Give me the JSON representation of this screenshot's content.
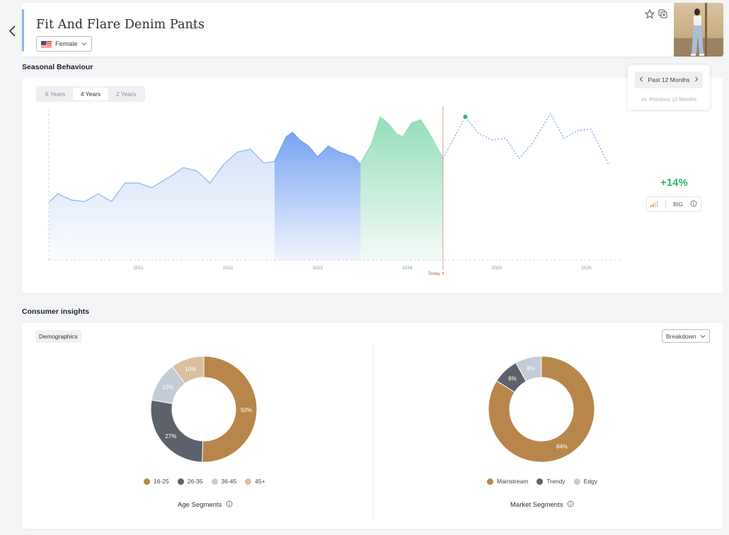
{
  "header": {
    "title": "Fit And Flare Denim Pants",
    "gender": "Female"
  },
  "seasonal": {
    "section_title": "Seasonal Behaviour",
    "year_tabs": [
      "6 Years",
      "4 Years",
      "2 Years"
    ],
    "active_tab": "4 Years",
    "period_label": "Past 12 Months",
    "compare_label": "vs. Previous 12 Months",
    "growth": "+14%",
    "strength": "BIG",
    "today_label": "Today"
  },
  "chart_data": {
    "type": "area",
    "x_ticks": [
      "2021",
      "2022",
      "2023",
      "2024",
      "2025",
      "2026"
    ],
    "today_marker": "Today",
    "colors": {
      "history": "#8fb3ef",
      "previous_period": "#6f9ff0",
      "past_12_months": "#8fdcb4",
      "forecast": "#6f9ff0",
      "today": "#c98b6b"
    },
    "history": [
      [
        2020.1,
        0.375
      ],
      [
        2020.2,
        0.43
      ],
      [
        2020.35,
        0.39
      ],
      [
        2020.5,
        0.38
      ],
      [
        2020.65,
        0.43
      ],
      [
        2020.8,
        0.38
      ],
      [
        2020.95,
        0.5
      ],
      [
        2021.1,
        0.5
      ],
      [
        2021.25,
        0.47
      ],
      [
        2021.45,
        0.54
      ],
      [
        2021.6,
        0.6
      ],
      [
        2021.75,
        0.58
      ],
      [
        2021.9,
        0.5
      ],
      [
        2022.05,
        0.62
      ],
      [
        2022.2,
        0.7
      ],
      [
        2022.35,
        0.72
      ],
      [
        2022.5,
        0.63
      ],
      [
        2022.62,
        0.64
      ]
    ],
    "previous_12_months": [
      [
        2022.62,
        0.64
      ],
      [
        2022.75,
        0.8
      ],
      [
        2022.82,
        0.83
      ],
      [
        2022.9,
        0.78
      ],
      [
        2023.0,
        0.74
      ],
      [
        2023.1,
        0.67
      ],
      [
        2023.22,
        0.74
      ],
      [
        2023.35,
        0.7
      ],
      [
        2023.5,
        0.67
      ],
      [
        2023.58,
        0.62
      ]
    ],
    "past_12_months": [
      [
        2023.58,
        0.63
      ],
      [
        2023.7,
        0.75
      ],
      [
        2023.8,
        0.93
      ],
      [
        2023.9,
        0.88
      ],
      [
        2023.98,
        0.82
      ],
      [
        2024.05,
        0.8
      ],
      [
        2024.15,
        0.89
      ],
      [
        2024.25,
        0.91
      ],
      [
        2024.35,
        0.82
      ],
      [
        2024.5,
        0.66
      ]
    ],
    "forecast": [
      [
        2024.5,
        0.66
      ],
      [
        2024.75,
        0.93
      ],
      [
        2024.9,
        0.82
      ],
      [
        2025.05,
        0.78
      ],
      [
        2025.2,
        0.79
      ],
      [
        2025.35,
        0.66
      ],
      [
        2025.5,
        0.76
      ],
      [
        2025.7,
        0.95
      ],
      [
        2025.85,
        0.79
      ],
      [
        2026.0,
        0.84
      ],
      [
        2026.15,
        0.85
      ],
      [
        2026.35,
        0.62
      ]
    ]
  },
  "consumer": {
    "section_title": "Consumer insights",
    "tab": "Demographics",
    "breakdown": "Breakdown",
    "age": {
      "caption": "Age Segments",
      "segments": [
        {
          "label": "16-25",
          "value": 50,
          "pct": "50%",
          "color": "#b8864b"
        },
        {
          "label": "26-35",
          "value": 27,
          "pct": "27%",
          "color": "#5d616b"
        },
        {
          "label": "36-45",
          "value": 12,
          "pct": "12%",
          "color": "#c4ccd8"
        },
        {
          "label": "45+",
          "value": 10,
          "pct": "10%",
          "color": "#dbbf9f"
        }
      ]
    },
    "market": {
      "caption": "Market Segments",
      "segments": [
        {
          "label": "Mainstream",
          "value": 84,
          "pct": "84%",
          "color": "#b8864b"
        },
        {
          "label": "Trendy",
          "value": 8,
          "pct": "8%",
          "color": "#5d616b"
        },
        {
          "label": "Edgy",
          "value": 8,
          "pct": "8%",
          "color": "#c4ccd8"
        }
      ]
    }
  }
}
